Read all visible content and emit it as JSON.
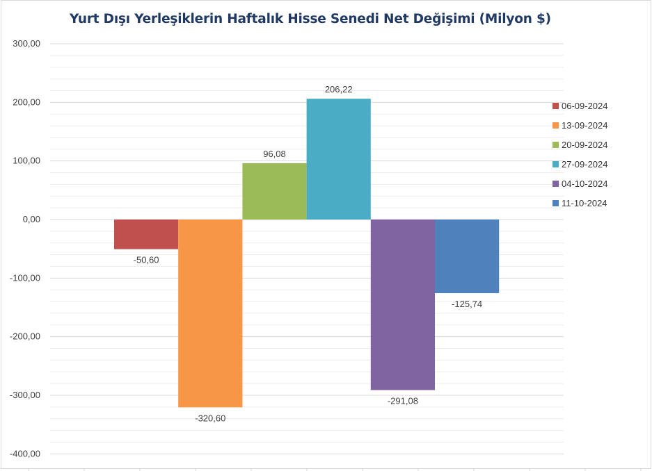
{
  "chart_data": {
    "type": "bar",
    "title": "Yurt Dışı Yerleşiklerin Haftalık Hisse Senedi Net Değişimi (Milyon $)",
    "xlabel": "",
    "ylabel": "",
    "ylim": [
      -400,
      300
    ],
    "y_ticks": [
      "300,00",
      "200,00",
      "100,00",
      "0,00",
      "-100,00",
      "-200,00",
      "-300,00",
      "-400,00"
    ],
    "y_tick_values": [
      300,
      200,
      100,
      0,
      -100,
      -200,
      -300,
      -400
    ],
    "legend_position": "right",
    "grid": true,
    "series": [
      {
        "name": "06-09-2024",
        "value": -50.6,
        "label": "-50,60",
        "color": "#c0504d"
      },
      {
        "name": "13-09-2024",
        "value": -320.6,
        "label": "-320,60",
        "color": "#f79646"
      },
      {
        "name": "20-09-2024",
        "value": 96.08,
        "label": "96,08",
        "color": "#9bbb59"
      },
      {
        "name": "27-09-2024",
        "value": 206.22,
        "label": "206,22",
        "color": "#4bacc6"
      },
      {
        "name": "04-10-2024",
        "value": -291.08,
        "label": "-291,08",
        "color": "#8064a2"
      },
      {
        "name": "11-10-2024",
        "value": -125.74,
        "label": "-125,74",
        "color": "#4f81bd"
      }
    ]
  }
}
